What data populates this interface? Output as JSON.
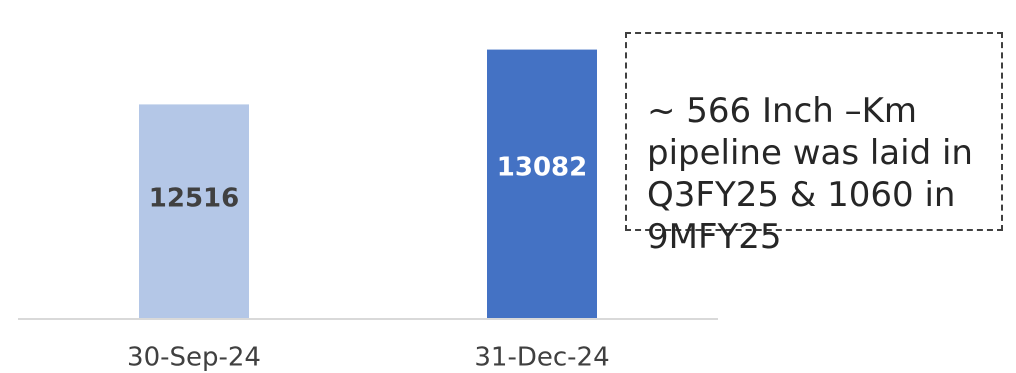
{
  "chart_data": {
    "type": "bar",
    "categories": [
      "30-Sep-24",
      "31-Dec-24"
    ],
    "values": [
      12516,
      13082
    ],
    "data_labels": [
      "12516",
      "13082"
    ],
    "ylim": [
      10300,
      13150
    ],
    "grid": false,
    "colors": [
      "#b4c7e7",
      "#4472c4"
    ],
    "label_colors": [
      "#404040",
      "#ffffff"
    ]
  },
  "note": {
    "text": "~ 566 Inch –Km\npipeline was laid in\nQ3FY25 & 1060 in\n9MFY25"
  }
}
